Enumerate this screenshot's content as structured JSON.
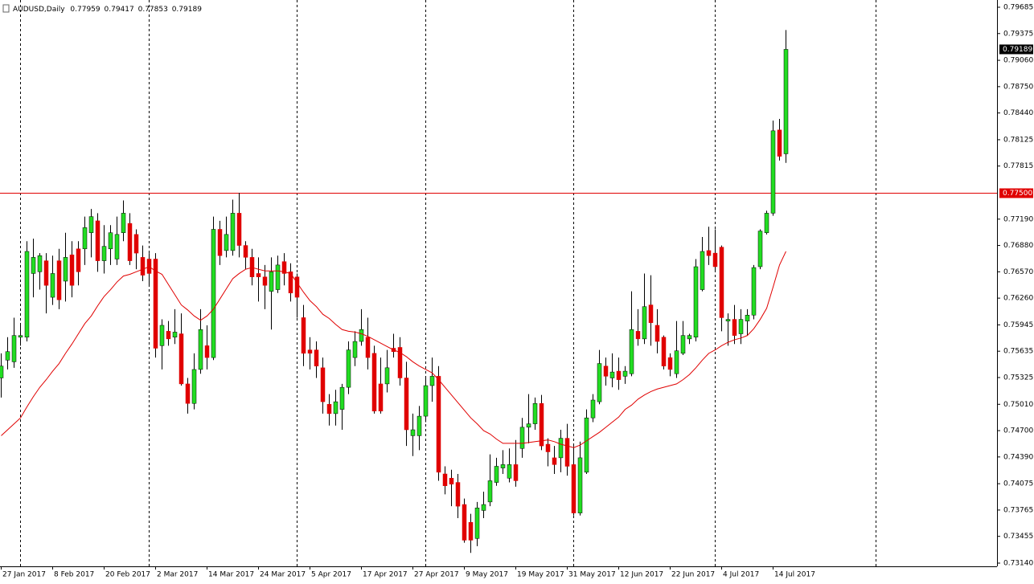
{
  "chart_data": {
    "type": "candlestick",
    "title": "AUDUSD,Daily",
    "categories": [
      "27 Jan 2017",
      null,
      null,
      null,
      null,
      null,
      null,
      null,
      "8 Feb 2017",
      null,
      null,
      null,
      null,
      null,
      null,
      null,
      "20 Feb 2017",
      null,
      null,
      null,
      null,
      null,
      null,
      null,
      "2 Mar 2017",
      null,
      null,
      null,
      null,
      null,
      null,
      null,
      "14 Mar 2017",
      null,
      null,
      null,
      null,
      null,
      null,
      null,
      "24 Mar 2017",
      null,
      null,
      null,
      null,
      null,
      null,
      null,
      "5 Apr 2017",
      null,
      null,
      null,
      null,
      null,
      null,
      null,
      "17 Apr 2017",
      null,
      null,
      null,
      null,
      null,
      null,
      null,
      "27 Apr 2017",
      null,
      null,
      null,
      null,
      null,
      null,
      null,
      "9 May 2017",
      null,
      null,
      null,
      null,
      null,
      null,
      null,
      "19 May 2017",
      null,
      null,
      null,
      null,
      null,
      null,
      null,
      "31 May 2017",
      null,
      null,
      null,
      null,
      null,
      null,
      null,
      "12 Jun 2017",
      null,
      null,
      null,
      null,
      null,
      null,
      null,
      "22 Jun 2017",
      null,
      null,
      null,
      null,
      null,
      null,
      null,
      "4 Jul 2017",
      null,
      null,
      null,
      null,
      null,
      null,
      null,
      "14 Jul 2017",
      null,
      null
    ],
    "open": [
      0.7532,
      0.7553,
      0.7551,
      0.758,
      0.758,
      0.7655,
      0.7657,
      0.767,
      0.7627,
      0.767,
      0.7646,
      0.7677,
      0.7684,
      0.7684,
      0.7703,
      0.7717,
      0.767,
      0.7684,
      0.7672,
      0.7703,
      0.7714,
      0.7701,
      0.7674,
      0.7672,
      0.7672,
      0.757,
      0.7587,
      0.758,
      0.7584,
      0.7525,
      0.7502,
      0.7542,
      0.757,
      0.7556,
      0.7707,
      0.7682,
      0.7682,
      0.7726,
      0.7688,
      0.7674,
      0.7655,
      0.7651,
      0.7634,
      0.7636,
      0.7669,
      0.7657,
      0.7651,
      0.7603,
      0.7565,
      0.7565,
      0.7544,
      0.7501,
      0.749,
      0.7495,
      0.7521,
      0.7556,
      0.7575,
      0.758,
      0.7561,
      0.7525,
      0.7525,
      0.7567,
      0.7568,
      0.7532,
      0.7464,
      0.7464,
      0.7487,
      0.7523,
      0.7534,
      0.7419,
      0.7414,
      0.7409,
      0.7383,
      0.7362,
      0.7343,
      0.7376,
      0.7386,
      0.7409,
      0.7426,
      0.7414,
      0.743,
      0.7449,
      0.7474,
      0.7478,
      0.7502,
      0.7454,
      0.7438,
      0.7438,
      0.7461,
      0.743,
      0.7373,
      0.7421,
      0.7485,
      0.7504,
      0.7546,
      0.7532,
      0.754,
      0.7534,
      0.7537,
      0.7587,
      0.7578,
      0.7618,
      0.7594,
      0.758,
      0.7556,
      0.7537,
      0.7561,
      0.7578,
      0.758,
      0.7636,
      0.7682,
      0.7679,
      0.7686,
      0.7599,
      0.7601,
      0.7584,
      0.7599,
      0.7606,
      0.7663,
      0.7703,
      0.7726,
      0.7824,
      0.77959
    ],
    "high": [
      0.7561,
      0.758,
      0.7603,
      0.7594,
      0.7693,
      0.7696,
      0.7679,
      0.7679,
      0.7676,
      0.7684,
      0.7703,
      0.7693,
      0.7693,
      0.7722,
      0.7731,
      0.7726,
      0.7712,
      0.7712,
      0.7722,
      0.7741,
      0.7726,
      0.7707,
      0.7688,
      0.7679,
      0.7679,
      0.7601,
      0.7599,
      0.7613,
      0.7608,
      0.7532,
      0.7561,
      0.7613,
      0.7594,
      0.7722,
      0.7717,
      0.7722,
      0.7742,
      0.775,
      0.7693,
      0.7684,
      0.7674,
      0.7665,
      0.7674,
      0.7676,
      0.7679,
      0.7667,
      0.7655,
      0.7618,
      0.758,
      0.7575,
      0.7556,
      0.7513,
      0.7518,
      0.7525,
      0.7575,
      0.7587,
      0.7613,
      0.7603,
      0.757,
      0.7556,
      0.7565,
      0.7584,
      0.758,
      0.7551,
      0.749,
      0.7499,
      0.7532,
      0.7556,
      0.7546,
      0.7428,
      0.7424,
      0.7419,
      0.739,
      0.7372,
      0.7386,
      0.7398,
      0.7442,
      0.7438,
      0.7447,
      0.7449,
      0.7459,
      0.7485,
      0.7513,
      0.7509,
      0.7512,
      0.7461,
      0.7452,
      0.7471,
      0.7478,
      0.7452,
      0.7457,
      0.7495,
      0.7513,
      0.7565,
      0.7556,
      0.7561,
      0.7556,
      0.7546,
      0.7634,
      0.7613,
      0.7655,
      0.7653,
      0.7613,
      0.7582,
      0.7561,
      0.7599,
      0.7599,
      0.7584,
      0.7672,
      0.7698,
      0.771,
      0.7707,
      0.7688,
      0.7608,
      0.7618,
      0.7613,
      0.7613,
      0.7665,
      0.7707,
      0.7729,
      0.7835,
      0.7837,
      0.79417
    ],
    "low": [
      0.7509,
      0.7542,
      0.7544,
      0.757,
      0.7575,
      0.7627,
      0.7636,
      0.7608,
      0.7618,
      0.7613,
      0.7622,
      0.7627,
      0.7641,
      0.7665,
      0.7674,
      0.7657,
      0.7655,
      0.7665,
      0.7665,
      0.7693,
      0.7665,
      0.766,
      0.7646,
      0.7641,
      0.7556,
      0.7542,
      0.757,
      0.7572,
      0.7523,
      0.749,
      0.7495,
      0.7537,
      0.7542,
      0.7553,
      0.7665,
      0.7674,
      0.7676,
      0.7674,
      0.766,
      0.7641,
      0.7622,
      0.7613,
      0.7589,
      0.7632,
      0.7641,
      0.7622,
      0.7603,
      0.7546,
      0.7542,
      0.7532,
      0.749,
      0.7476,
      0.7476,
      0.7471,
      0.7513,
      0.7546,
      0.757,
      0.7542,
      0.749,
      0.749,
      0.7515,
      0.7556,
      0.7523,
      0.7452,
      0.744,
      0.7447,
      0.748,
      0.7504,
      0.7411,
      0.7395,
      0.7381,
      0.7367,
      0.7338,
      0.7326,
      0.7334,
      0.7367,
      0.7381,
      0.7405,
      0.7419,
      0.7409,
      0.7404,
      0.7438,
      0.7455,
      0.7471,
      0.7447,
      0.7428,
      0.7419,
      0.7421,
      0.7417,
      0.737,
      0.737,
      0.7419,
      0.748,
      0.7501,
      0.7523,
      0.7521,
      0.7518,
      0.7525,
      0.7534,
      0.757,
      0.7572,
      0.757,
      0.7561,
      0.7542,
      0.7534,
      0.7532,
      0.7559,
      0.7572,
      0.7575,
      0.7634,
      0.7665,
      0.7657,
      0.7587,
      0.757,
      0.7572,
      0.7572,
      0.7582,
      0.7601,
      0.766,
      0.7701,
      0.7723,
      0.7788,
      0.77853
    ],
    "close": [
      0.7546,
      0.7563,
      0.7582,
      0.7582,
      0.7681,
      0.7674,
      0.7676,
      0.7641,
      0.7655,
      0.7624,
      0.7674,
      0.7641,
      0.7657,
      0.7709,
      0.7722,
      0.767,
      0.7687,
      0.7703,
      0.7701,
      0.7726,
      0.767,
      0.7679,
      0.7653,
      0.7655,
      0.7567,
      0.7594,
      0.7578,
      0.7586,
      0.7525,
      0.7502,
      0.7542,
      0.7589,
      0.7556,
      0.7707,
      0.7676,
      0.7701,
      0.7726,
      0.7688,
      0.7674,
      0.7651,
      0.7651,
      0.7641,
      0.7657,
      0.7665,
      0.7655,
      0.7632,
      0.7627,
      0.7561,
      0.7561,
      0.7546,
      0.7504,
      0.749,
      0.7504,
      0.7521,
      0.7565,
      0.7575,
      0.7589,
      0.7556,
      0.7493,
      0.7493,
      0.7544,
      0.7563,
      0.7532,
      0.7471,
      0.7471,
      0.7487,
      0.7523,
      0.7534,
      0.7421,
      0.7405,
      0.7407,
      0.7381,
      0.7341,
      0.7341,
      0.7379,
      0.7383,
      0.7411,
      0.7428,
      0.743,
      0.743,
      0.7411,
      0.7474,
      0.7478,
      0.7502,
      0.7452,
      0.7445,
      0.743,
      0.7461,
      0.7428,
      0.7373,
      0.7438,
      0.7485,
      0.7506,
      0.7549,
      0.7534,
      0.7539,
      0.753,
      0.754,
      0.7589,
      0.7578,
      0.7616,
      0.7597,
      0.7575,
      0.7546,
      0.7542,
      0.7564,
      0.7582,
      0.7582,
      0.7663,
      0.7681,
      0.7676,
      0.7663,
      0.7603,
      0.7601,
      0.7582,
      0.7601,
      0.7606,
      0.7662,
      0.7705,
      0.7726,
      0.7823,
      0.7793,
      0.79189
    ],
    "up_color": "#22dd22",
    "down_color": "#e00000",
    "wick_color": "#000000",
    "ma": {
      "color": "#e00000",
      "values": [
        0.7464,
        0.7471,
        0.7478,
        0.7485,
        0.7498,
        0.751,
        0.7521,
        0.753,
        0.754,
        0.7549,
        0.7561,
        0.7572,
        0.7584,
        0.7596,
        0.7605,
        0.7617,
        0.7628,
        0.7636,
        0.7645,
        0.7652,
        0.7654,
        0.7657,
        0.766,
        0.7663,
        0.7658,
        0.7654,
        0.7642,
        0.763,
        0.7618,
        0.7612,
        0.7605,
        0.76,
        0.7605,
        0.7613,
        0.7625,
        0.7637,
        0.7649,
        0.7655,
        0.766,
        0.7662,
        0.766,
        0.7658,
        0.7658,
        0.7658,
        0.7657,
        0.7655,
        0.7644,
        0.7633,
        0.7623,
        0.7616,
        0.7607,
        0.7602,
        0.7595,
        0.7589,
        0.7587,
        0.7586,
        0.7584,
        0.7581,
        0.7577,
        0.7573,
        0.7569,
        0.7565,
        0.7562,
        0.7557,
        0.7551,
        0.7546,
        0.7542,
        0.7538,
        0.753,
        0.7521,
        0.7512,
        0.7503,
        0.7494,
        0.7485,
        0.7478,
        0.747,
        0.7466,
        0.746,
        0.7455,
        0.7455,
        0.7455,
        0.7455,
        0.7456,
        0.7457,
        0.7458,
        0.7459,
        0.7457,
        0.7454,
        0.7452,
        0.745,
        0.7453,
        0.7458,
        0.7463,
        0.7468,
        0.7474,
        0.748,
        0.7486,
        0.7495,
        0.75,
        0.7507,
        0.7512,
        0.7516,
        0.7519,
        0.7521,
        0.7523,
        0.7525,
        0.753,
        0.7536,
        0.7544,
        0.7553,
        0.7561,
        0.7565,
        0.757,
        0.7574,
        0.7577,
        0.7579,
        0.7582,
        0.759,
        0.7601,
        0.7614,
        0.7639,
        0.7665,
        0.7681
      ]
    },
    "hline": {
      "value": 0.775,
      "label": "0.77500",
      "color": "#e00000"
    },
    "ylim": [
      0.7314,
      0.79685
    ],
    "yticks": [
      0.79685,
      0.79375,
      {
        "value": 0.7906,
        "label": "0.79060"
      },
      {
        "value": 0.7875,
        "label": "0.78750"
      },
      {
        "value": 0.7844,
        "label": "0.78440"
      },
      0.78125,
      0.77815,
      {
        "value": 0.7719,
        "label": "0.77190"
      },
      {
        "value": 0.7688,
        "label": "0.76880"
      },
      {
        "value": 0.7657,
        "label": "0.76570"
      },
      {
        "value": 0.7626,
        "label": "0.76260"
      },
      0.75945,
      0.75635,
      0.75325,
      {
        "value": 0.7501,
        "label": "0.75010"
      },
      {
        "value": 0.747,
        "label": "0.74700"
      },
      {
        "value": 0.7439,
        "label": "0.74390"
      },
      0.74075,
      0.73765,
      0.73455,
      {
        "value": 0.7314,
        "label": "0.73140"
      }
    ]
  }
}
